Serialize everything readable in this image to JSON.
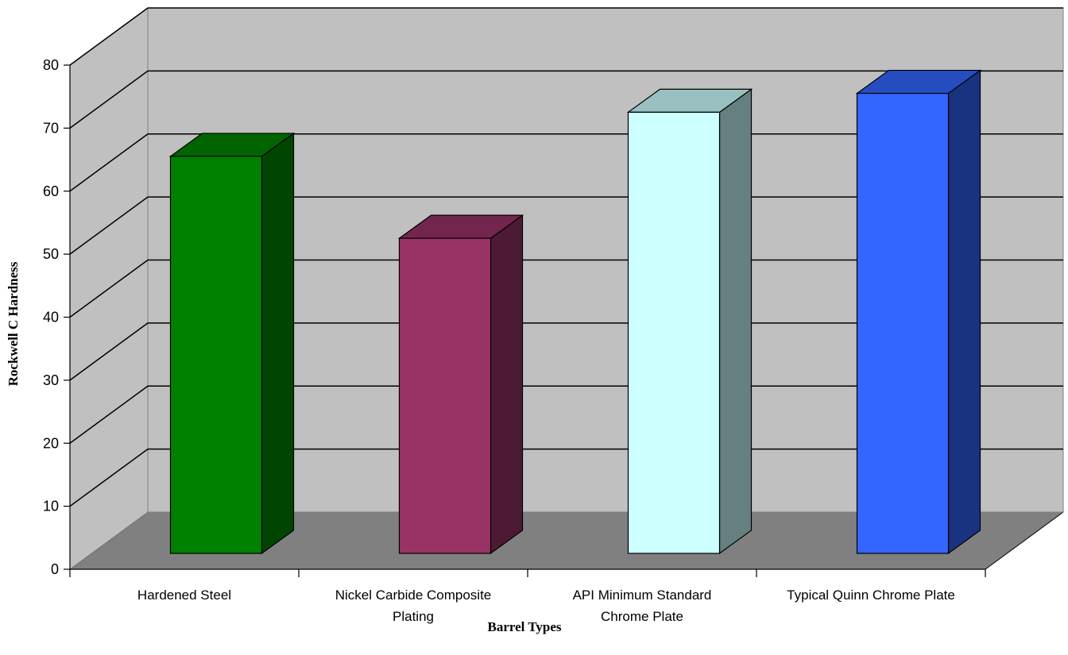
{
  "chart_data": {
    "type": "bar",
    "style": "3d-column",
    "categories": [
      [
        "Hardened Steel"
      ],
      [
        "Nickel Carbide Composite",
        "Plating"
      ],
      [
        "API Minimum Standard",
        "Chrome Plate"
      ],
      [
        "Typical Quinn Chrome Plate"
      ]
    ],
    "values": [
      63,
      50,
      70,
      73
    ],
    "xlabel": "Barrel Types",
    "ylabel": "Rockwell C Hardness",
    "ylim": [
      0,
      80
    ],
    "yticks": [
      0,
      10,
      20,
      30,
      40,
      50,
      60,
      70,
      80
    ],
    "grid": true,
    "legend": "none",
    "colors": {
      "bars": [
        {
          "front": "#008000",
          "top": "#006400",
          "side": "#004500"
        },
        {
          "front": "#993366",
          "top": "#73264D",
          "side": "#4D1A33"
        },
        {
          "front": "#CCFFFF",
          "top": "#99C0C0",
          "side": "#668080"
        },
        {
          "front": "#3366FF",
          "top": "#264DBF",
          "side": "#1A3380"
        }
      ],
      "back_wall": "#C0C0C0",
      "side_wall": "#C0C0C0",
      "floor": "#808080",
      "gridline": "#000000"
    }
  }
}
